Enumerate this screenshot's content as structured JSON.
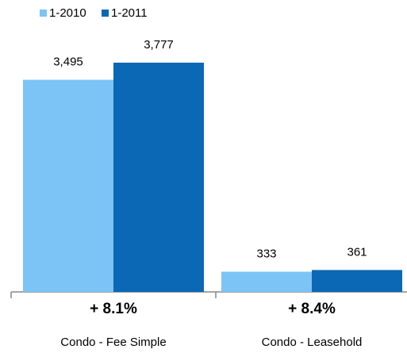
{
  "chart_data": {
    "type": "bar",
    "categories": [
      "Condo - Fee Simple",
      "Condo - Leasehold"
    ],
    "series": [
      {
        "name": "1-2010",
        "color": "#7cc4f5",
        "values": [
          3495,
          333
        ],
        "value_labels": [
          "3,495",
          "333"
        ]
      },
      {
        "name": "1-2011",
        "color": "#0a68b4",
        "values": [
          3777,
          361
        ],
        "value_labels": [
          "3,777",
          "361"
        ]
      }
    ],
    "annotations": [
      "+ 8.1%",
      "+ 8.4%"
    ]
  }
}
